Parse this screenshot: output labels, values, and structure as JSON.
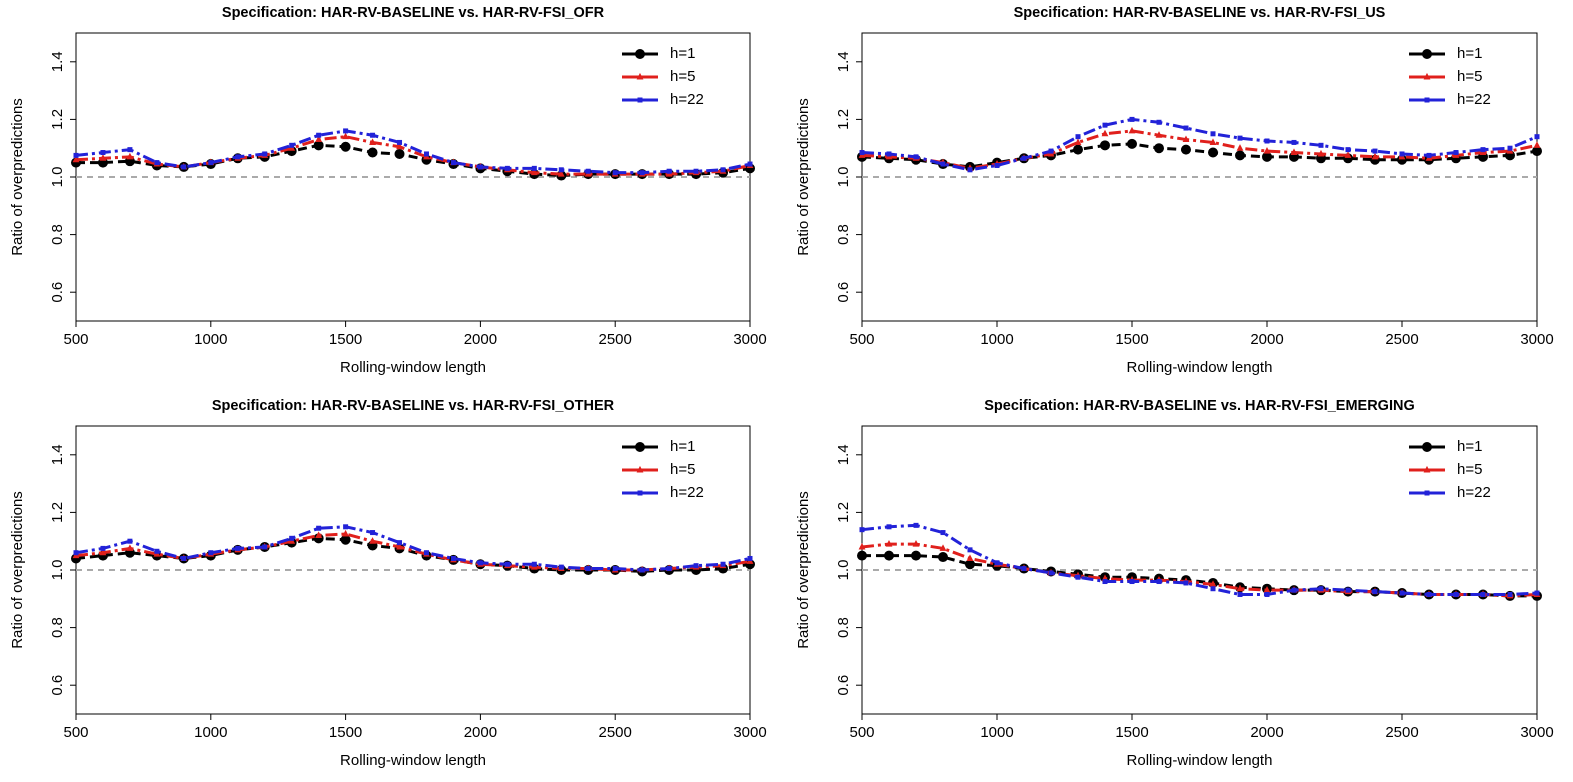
{
  "chart_data": [
    {
      "type": "line",
      "title": "Specification: HAR-RV-BASELINE vs. HAR-RV-FSI_OFR",
      "xlabel": "Rolling-window length",
      "ylabel": "Ratio of overpredictions",
      "x": [
        500,
        600,
        700,
        800,
        900,
        1000,
        1100,
        1200,
        1300,
        1400,
        1500,
        1600,
        1700,
        1800,
        1900,
        2000,
        2100,
        2200,
        2300,
        2400,
        2500,
        2600,
        2700,
        2800,
        2900,
        3000
      ],
      "xlim": [
        500,
        3000
      ],
      "ylim": [
        0.5,
        1.5
      ],
      "xticks": [
        500,
        1000,
        1500,
        2000,
        2500,
        3000
      ],
      "yticks": [
        0.6,
        0.8,
        {
          "value": 1,
          "label": "1.0"
        },
        1.2,
        1.4
      ],
      "hline": 1,
      "legend": "top-right",
      "series": [
        {
          "name": "h=1",
          "color": "#000000",
          "linestyle": "dashed",
          "marker": "circle",
          "values": [
            1.05,
            1.05,
            1.055,
            1.04,
            1.035,
            1.045,
            1.065,
            1.07,
            1.09,
            1.11,
            1.105,
            1.085,
            1.08,
            1.06,
            1.045,
            1.03,
            1.02,
            1.01,
            1.005,
            1.01,
            1.01,
            1.01,
            1.01,
            1.01,
            1.015,
            1.03
          ]
        },
        {
          "name": "h=5",
          "color": "#e0201c",
          "linestyle": "dashdot",
          "marker": "triangle",
          "values": [
            1.06,
            1.065,
            1.07,
            1.045,
            1.035,
            1.05,
            1.065,
            1.075,
            1.1,
            1.13,
            1.14,
            1.12,
            1.105,
            1.07,
            1.05,
            1.035,
            1.025,
            1.015,
            1.01,
            1.01,
            1.01,
            1.01,
            1.01,
            1.015,
            1.02,
            1.04
          ]
        },
        {
          "name": "h=22",
          "color": "#2222d8",
          "linestyle": "dashdot",
          "marker": "square",
          "values": [
            1.075,
            1.085,
            1.095,
            1.05,
            1.035,
            1.05,
            1.07,
            1.08,
            1.11,
            1.145,
            1.16,
            1.145,
            1.12,
            1.08,
            1.05,
            1.035,
            1.03,
            1.03,
            1.025,
            1.02,
            1.015,
            1.015,
            1.02,
            1.02,
            1.025,
            1.045
          ]
        }
      ]
    },
    {
      "type": "line",
      "title": "Specification: HAR-RV-BASELINE vs. HAR-RV-FSI_US",
      "xlabel": "Rolling-window length",
      "ylabel": "Ratio of overpredictions",
      "x": [
        500,
        600,
        700,
        800,
        900,
        1000,
        1100,
        1200,
        1300,
        1400,
        1500,
        1600,
        1700,
        1800,
        1900,
        2000,
        2100,
        2200,
        2300,
        2400,
        2500,
        2600,
        2700,
        2800,
        2900,
        3000
      ],
      "xlim": [
        500,
        3000
      ],
      "ylim": [
        0.5,
        1.5
      ],
      "xticks": [
        500,
        1000,
        1500,
        2000,
        2500,
        3000
      ],
      "yticks": [
        0.6,
        0.8,
        {
          "value": 1,
          "label": "1.0"
        },
        1.2,
        1.4
      ],
      "hline": 1,
      "legend": "top-right",
      "series": [
        {
          "name": "h=1",
          "color": "#000000",
          "linestyle": "dashed",
          "marker": "circle",
          "values": [
            1.07,
            1.065,
            1.06,
            1.045,
            1.035,
            1.05,
            1.065,
            1.075,
            1.095,
            1.11,
            1.115,
            1.1,
            1.095,
            1.085,
            1.075,
            1.07,
            1.07,
            1.065,
            1.065,
            1.06,
            1.06,
            1.06,
            1.065,
            1.07,
            1.075,
            1.09
          ]
        },
        {
          "name": "h=5",
          "color": "#e0201c",
          "linestyle": "dashdot",
          "marker": "triangle",
          "values": [
            1.075,
            1.07,
            1.065,
            1.05,
            1.03,
            1.045,
            1.065,
            1.08,
            1.12,
            1.15,
            1.16,
            1.145,
            1.13,
            1.12,
            1.1,
            1.09,
            1.085,
            1.08,
            1.075,
            1.07,
            1.07,
            1.065,
            1.075,
            1.085,
            1.09,
            1.11
          ]
        },
        {
          "name": "h=22",
          "color": "#2222d8",
          "linestyle": "dashdot",
          "marker": "square",
          "values": [
            1.085,
            1.08,
            1.07,
            1.045,
            1.025,
            1.04,
            1.065,
            1.09,
            1.14,
            1.18,
            1.2,
            1.19,
            1.17,
            1.15,
            1.135,
            1.125,
            1.12,
            1.11,
            1.095,
            1.09,
            1.08,
            1.075,
            1.085,
            1.095,
            1.1,
            1.14
          ]
        }
      ]
    },
    {
      "type": "line",
      "title": "Specification: HAR-RV-BASELINE vs. HAR-RV-FSI_OTHER",
      "xlabel": "Rolling-window length",
      "ylabel": "Ratio of overpredictions",
      "x": [
        500,
        600,
        700,
        800,
        900,
        1000,
        1100,
        1200,
        1300,
        1400,
        1500,
        1600,
        1700,
        1800,
        1900,
        2000,
        2100,
        2200,
        2300,
        2400,
        2500,
        2600,
        2700,
        2800,
        2900,
        3000
      ],
      "xlim": [
        500,
        3000
      ],
      "ylim": [
        0.5,
        1.5
      ],
      "xticks": [
        500,
        1000,
        1500,
        2000,
        2500,
        3000
      ],
      "yticks": [
        0.6,
        0.8,
        {
          "value": 1,
          "label": "1.0"
        },
        1.2,
        1.4
      ],
      "hline": 1,
      "legend": "top-right",
      "series": [
        {
          "name": "h=1",
          "color": "#000000",
          "linestyle": "dashed",
          "marker": "circle",
          "values": [
            1.04,
            1.05,
            1.06,
            1.05,
            1.04,
            1.05,
            1.07,
            1.08,
            1.095,
            1.11,
            1.105,
            1.085,
            1.075,
            1.05,
            1.035,
            1.02,
            1.015,
            1.005,
            1.0,
            1.0,
            1.0,
            0.995,
            1.0,
            1.0,
            1.005,
            1.02
          ]
        },
        {
          "name": "h=5",
          "color": "#e0201c",
          "linestyle": "dashdot",
          "marker": "triangle",
          "values": [
            1.05,
            1.06,
            1.075,
            1.055,
            1.04,
            1.055,
            1.07,
            1.08,
            1.1,
            1.12,
            1.125,
            1.1,
            1.08,
            1.055,
            1.035,
            1.02,
            1.015,
            1.01,
            1.005,
            1.005,
            1.0,
            1.0,
            1.005,
            1.01,
            1.015,
            1.03
          ]
        },
        {
          "name": "h=22",
          "color": "#2222d8",
          "linestyle": "dashdot",
          "marker": "square",
          "values": [
            1.06,
            1.075,
            1.1,
            1.065,
            1.04,
            1.06,
            1.075,
            1.08,
            1.11,
            1.145,
            1.15,
            1.13,
            1.095,
            1.06,
            1.04,
            1.025,
            1.02,
            1.02,
            1.01,
            1.005,
            1.005,
            1.0,
            1.005,
            1.015,
            1.02,
            1.04
          ]
        }
      ]
    },
    {
      "type": "line",
      "title": "Specification: HAR-RV-BASELINE vs. HAR-RV-FSI_EMERGING",
      "xlabel": "Rolling-window length",
      "ylabel": "Ratio of overpredictions",
      "x": [
        500,
        600,
        700,
        800,
        900,
        1000,
        1100,
        1200,
        1300,
        1400,
        1500,
        1600,
        1700,
        1800,
        1900,
        2000,
        2100,
        2200,
        2300,
        2400,
        2500,
        2600,
        2700,
        2800,
        2900,
        3000
      ],
      "xlim": [
        500,
        3000
      ],
      "ylim": [
        0.5,
        1.5
      ],
      "xticks": [
        500,
        1000,
        1500,
        2000,
        2500,
        3000
      ],
      "yticks": [
        0.6,
        0.8,
        {
          "value": 1,
          "label": "1.0"
        },
        1.2,
        1.4
      ],
      "hline": 1,
      "legend": "top-right",
      "series": [
        {
          "name": "h=1",
          "color": "#000000",
          "linestyle": "dashed",
          "marker": "circle",
          "values": [
            1.05,
            1.05,
            1.05,
            1.045,
            1.02,
            1.015,
            1.005,
            0.995,
            0.985,
            0.975,
            0.975,
            0.97,
            0.965,
            0.955,
            0.94,
            0.935,
            0.93,
            0.93,
            0.925,
            0.925,
            0.92,
            0.915,
            0.915,
            0.915,
            0.91,
            0.91
          ]
        },
        {
          "name": "h=5",
          "color": "#e0201c",
          "linestyle": "dashdot",
          "marker": "triangle",
          "values": [
            1.08,
            1.09,
            1.09,
            1.075,
            1.04,
            1.02,
            1.005,
            0.99,
            0.98,
            0.97,
            0.965,
            0.965,
            0.96,
            0.95,
            0.935,
            0.93,
            0.93,
            0.93,
            0.925,
            0.925,
            0.92,
            0.915,
            0.915,
            0.915,
            0.91,
            0.915
          ]
        },
        {
          "name": "h=22",
          "color": "#2222d8",
          "linestyle": "dashdot",
          "marker": "square",
          "values": [
            1.14,
            1.15,
            1.155,
            1.13,
            1.07,
            1.025,
            1.005,
            0.99,
            0.975,
            0.96,
            0.96,
            0.96,
            0.955,
            0.935,
            0.915,
            0.915,
            0.93,
            0.935,
            0.93,
            0.925,
            0.92,
            0.915,
            0.915,
            0.915,
            0.915,
            0.92
          ]
        }
      ]
    }
  ]
}
